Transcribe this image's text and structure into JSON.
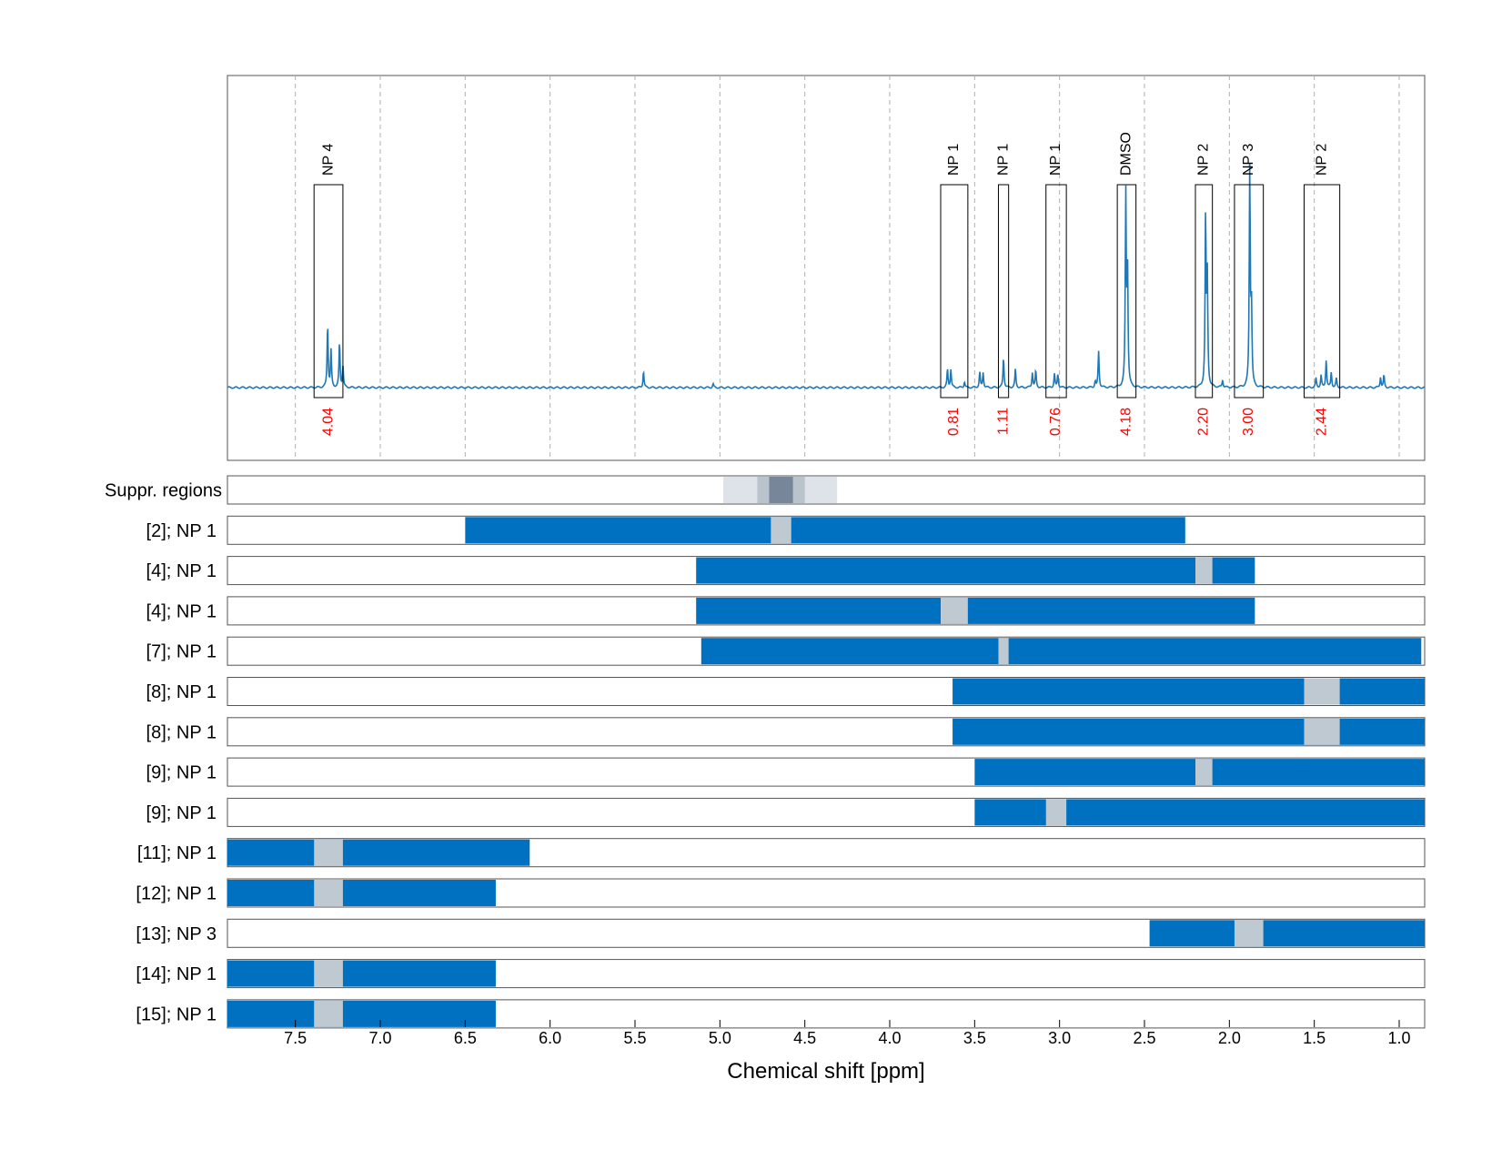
{
  "chart_data": {
    "type": "nmr-spectrum-with-region-panels",
    "xlabel": "Chemical shift [ppm]",
    "xlim": [
      7.9,
      0.85
    ],
    "xticks": [
      7.5,
      7.0,
      6.5,
      6.0,
      5.5,
      5.0,
      4.5,
      4.0,
      3.5,
      3.0,
      2.5,
      2.0,
      1.5,
      1.0
    ],
    "xtick_labels": [
      "7.5",
      "7.0",
      "6.5",
      "6.0",
      "5.5",
      "5.0",
      "4.5",
      "4.0",
      "3.5",
      "3.0",
      "2.5",
      "2.0",
      "1.5",
      "1.0"
    ],
    "spectrum": {
      "peaks": [
        {
          "ppm": 7.31,
          "height": 0.21
        },
        {
          "ppm": 7.29,
          "height": 0.12
        },
        {
          "ppm": 7.24,
          "height": 0.15
        },
        {
          "ppm": 7.22,
          "height": 0.07
        },
        {
          "ppm": 5.45,
          "height": 0.055
        },
        {
          "ppm": 5.04,
          "height": 0.012
        },
        {
          "ppm": 3.66,
          "height": 0.06
        },
        {
          "ppm": 3.64,
          "height": 0.06
        },
        {
          "ppm": 3.56,
          "height": 0.02
        },
        {
          "ppm": 3.47,
          "height": 0.05
        },
        {
          "ppm": 3.45,
          "height": 0.05
        },
        {
          "ppm": 3.33,
          "height": 0.1
        },
        {
          "ppm": 3.26,
          "height": 0.06
        },
        {
          "ppm": 3.16,
          "height": 0.05
        },
        {
          "ppm": 3.14,
          "height": 0.055
        },
        {
          "ppm": 3.03,
          "height": 0.045
        },
        {
          "ppm": 3.01,
          "height": 0.045
        },
        {
          "ppm": 2.79,
          "height": 0.02
        },
        {
          "ppm": 2.77,
          "height": 0.12
        },
        {
          "ppm": 2.61,
          "height": 0.62
        },
        {
          "ppm": 2.6,
          "height": 0.4
        },
        {
          "ppm": 2.14,
          "height": 0.56
        },
        {
          "ppm": 2.13,
          "height": 0.35
        },
        {
          "ppm": 2.04,
          "height": 0.025
        },
        {
          "ppm": 1.88,
          "height": 0.72
        },
        {
          "ppm": 1.87,
          "height": 0.25
        },
        {
          "ppm": 1.49,
          "height": 0.03
        },
        {
          "ppm": 1.46,
          "height": 0.04
        },
        {
          "ppm": 1.43,
          "height": 0.09
        },
        {
          "ppm": 1.4,
          "height": 0.05
        },
        {
          "ppm": 1.37,
          "height": 0.03
        },
        {
          "ppm": 1.11,
          "height": 0.035
        },
        {
          "ppm": 1.09,
          "height": 0.04
        }
      ]
    },
    "annotations": [
      {
        "label": "NP 4",
        "from": 7.39,
        "to": 7.22,
        "value": "4.04"
      },
      {
        "label": "NP 1",
        "from": 3.7,
        "to": 3.54,
        "value": "0.81"
      },
      {
        "label": "NP 1",
        "from": 3.36,
        "to": 3.3,
        "value": "1.11"
      },
      {
        "label": "NP 1",
        "from": 3.08,
        "to": 2.96,
        "value": "0.76"
      },
      {
        "label": "DMSO",
        "from": 2.66,
        "to": 2.55,
        "value": "4.18"
      },
      {
        "label": "NP 2",
        "from": 2.2,
        "to": 2.1,
        "value": "2.20"
      },
      {
        "label": "NP 3",
        "from": 1.97,
        "to": 1.8,
        "value": "3.00"
      },
      {
        "label": "NP 2",
        "from": 1.56,
        "to": 1.35,
        "value": "2.44"
      }
    ],
    "suppressed_regions": {
      "label": "Suppr. regions",
      "bands": [
        {
          "from": 4.98,
          "to": 4.31,
          "shade": "#dde3e9"
        },
        {
          "from": 4.78,
          "to": 4.5,
          "shade": "#b9c3cc"
        },
        {
          "from": 4.71,
          "to": 4.57,
          "shade": "#78869a"
        }
      ]
    },
    "region_rows": [
      {
        "label": "[2]; NP 1",
        "from": 6.5,
        "to": 2.26,
        "marker": [
          4.7,
          4.58
        ]
      },
      {
        "label": "[4]; NP 1",
        "from": 5.14,
        "to": 1.85,
        "marker": [
          2.2,
          2.1
        ]
      },
      {
        "label": "[4]; NP 1",
        "from": 5.14,
        "to": 1.85,
        "marker": [
          3.7,
          3.54
        ]
      },
      {
        "label": "[7]; NP 1",
        "from": 5.11,
        "to": 0.87,
        "marker": [
          3.36,
          3.3
        ]
      },
      {
        "label": "[8]; NP 1",
        "from": 3.63,
        "to": 0.85,
        "marker": [
          1.56,
          1.35
        ]
      },
      {
        "label": "[8]; NP 1",
        "from": 3.63,
        "to": 0.85,
        "marker": [
          1.56,
          1.35
        ]
      },
      {
        "label": "[9]; NP 1",
        "from": 3.5,
        "to": 0.85,
        "marker": [
          2.2,
          2.1
        ]
      },
      {
        "label": "[9]; NP 1",
        "from": 3.5,
        "to": 0.85,
        "marker": [
          3.08,
          2.96
        ]
      },
      {
        "label": "[11]; NP 1",
        "from": 7.9,
        "to": 6.12,
        "marker": [
          7.39,
          7.22
        ]
      },
      {
        "label": "[12]; NP 1",
        "from": 7.9,
        "to": 6.32,
        "marker": [
          7.39,
          7.22
        ]
      },
      {
        "label": "[13]; NP 3",
        "from": 2.47,
        "to": 0.85,
        "marker": [
          1.97,
          1.8
        ]
      },
      {
        "label": "[14]; NP 1",
        "from": 7.9,
        "to": 6.32,
        "marker": [
          7.39,
          7.22
        ]
      },
      {
        "label": "[15]; NP 1",
        "from": 7.9,
        "to": 6.32,
        "marker": [
          7.39,
          7.22
        ]
      }
    ],
    "colors": {
      "spectrum": "#1f77b4",
      "region_bar": "#0070c0",
      "marker": "#bec9d1",
      "integral_text": "#ff0000",
      "grid": "#b0b0b0"
    },
    "grid": true
  }
}
